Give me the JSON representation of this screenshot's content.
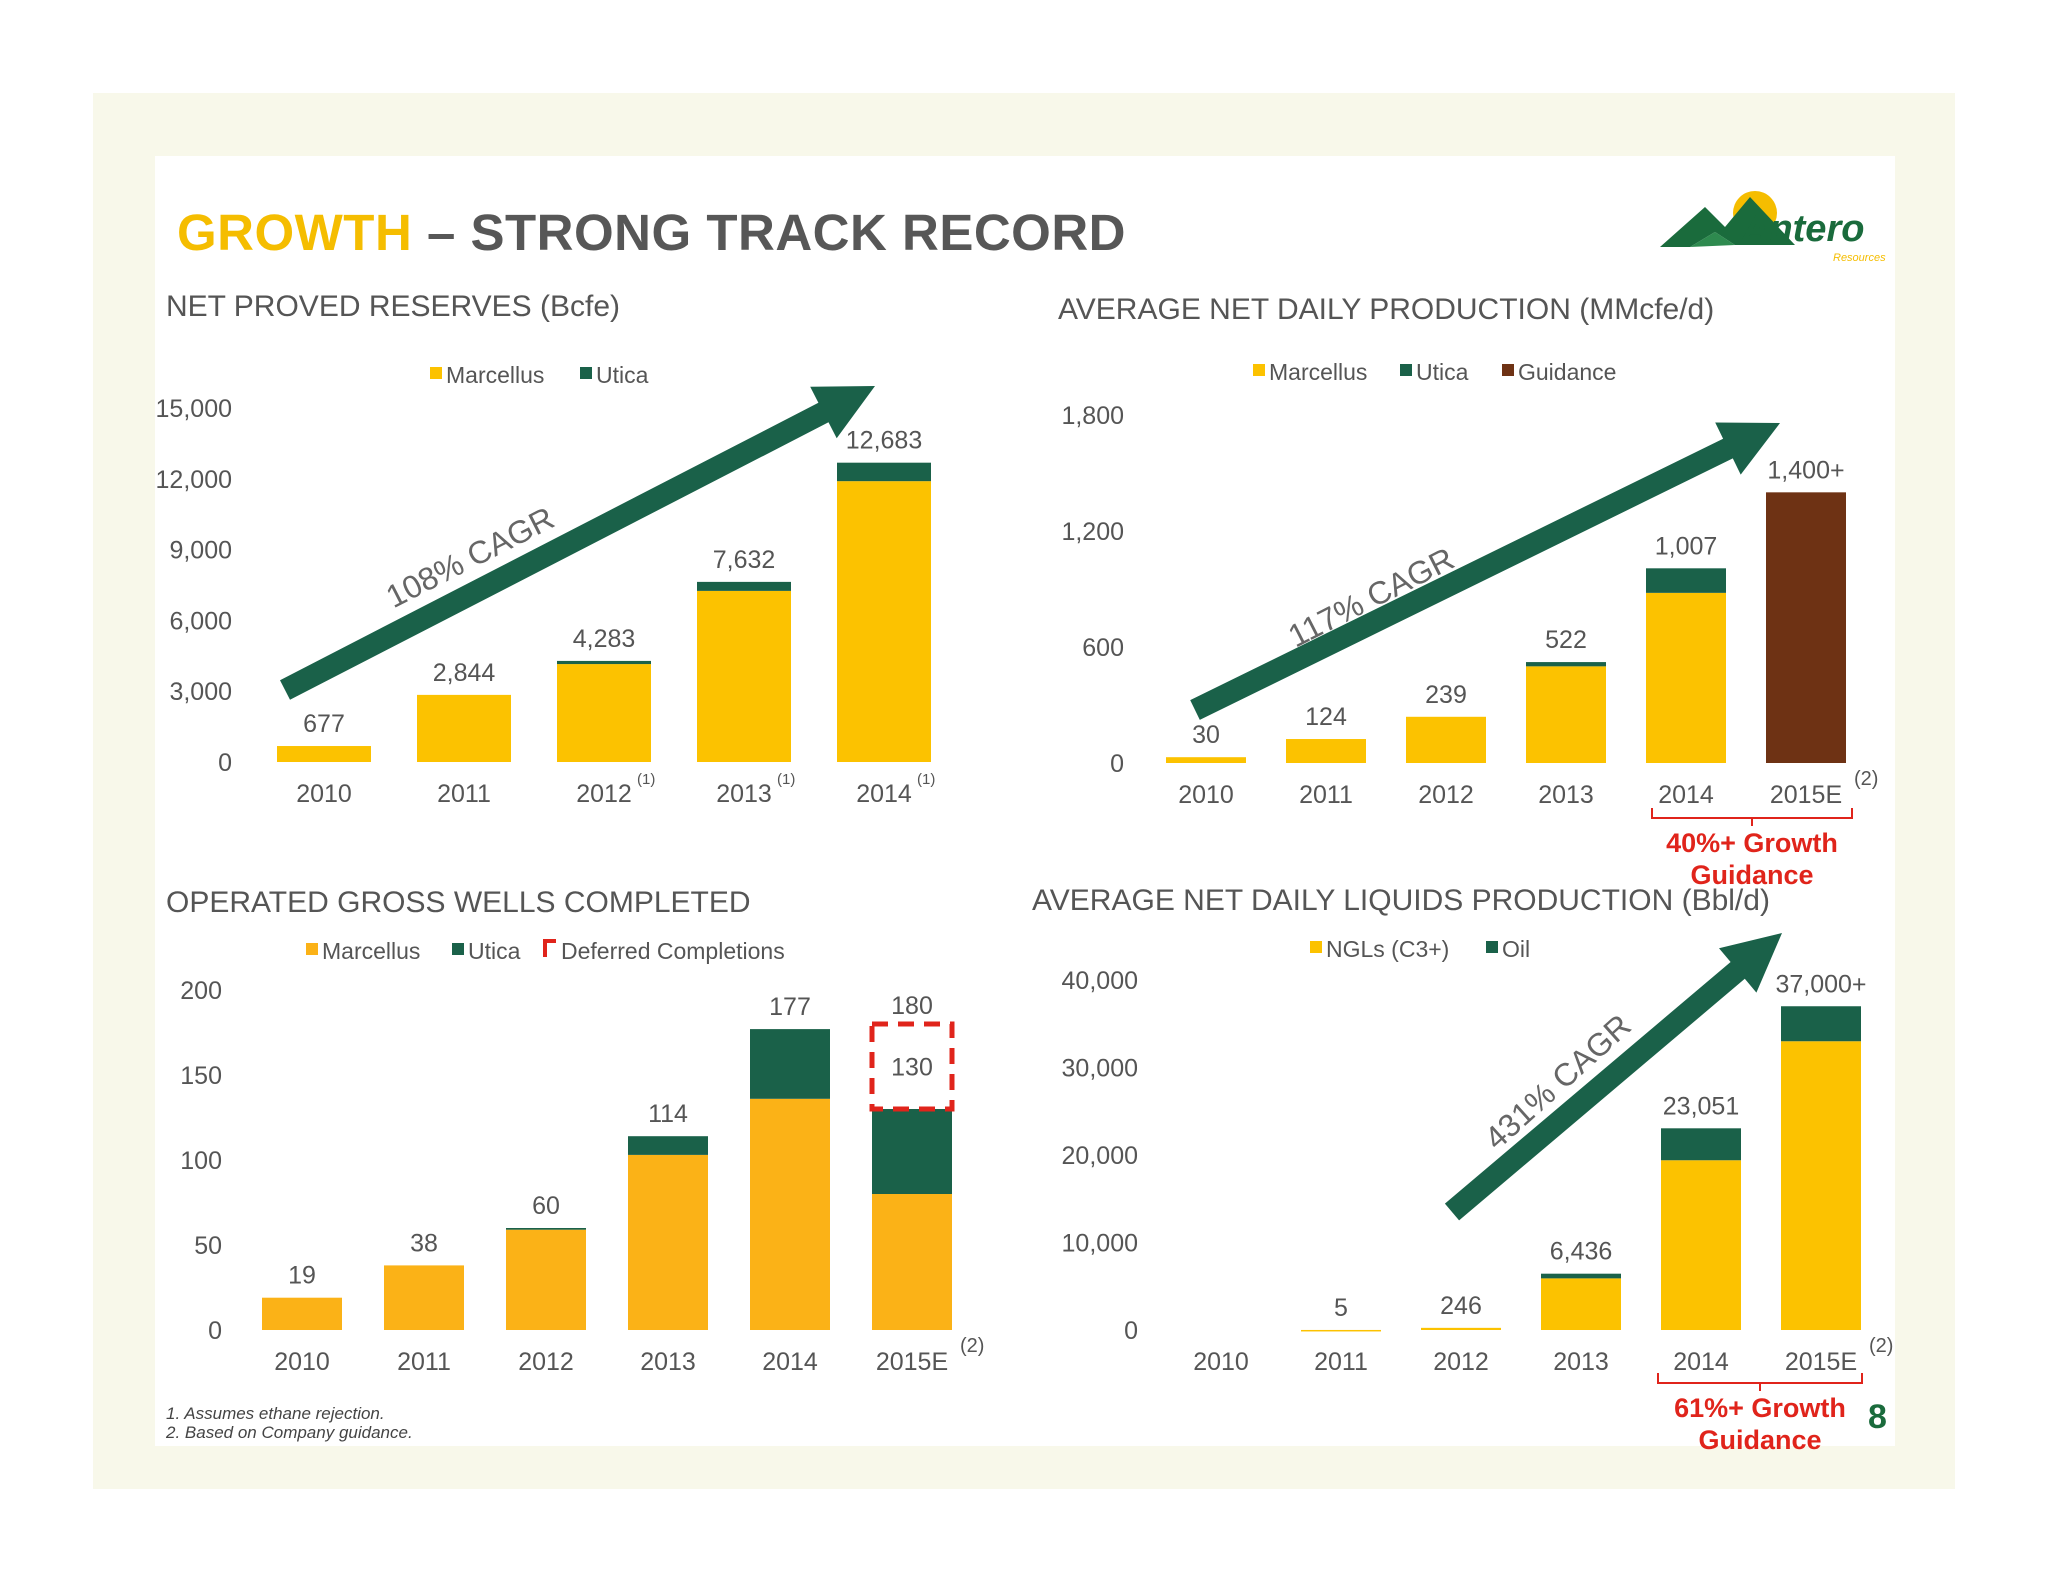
{
  "title": {
    "accent": "GROWTH",
    "rest": " – STRONG TRACK RECORD"
  },
  "logo": {
    "name": "Antero",
    "sub": "Resources"
  },
  "colors": {
    "marcellus": "#fcc200",
    "utica": "#1a6149",
    "guidance": "#6e3214",
    "ngl": "#fcc200",
    "oil": "#1a6149",
    "wells_marcellus": "#fbb217",
    "deferred": "#e0241b",
    "arrow": "#1a6149",
    "red": "#e0241b"
  },
  "chart_data": [
    {
      "id": "reserves",
      "type": "bar",
      "title": "NET PROVED RESERVES (Bcfe)",
      "categories": [
        "2010",
        "2011",
        "2012",
        "2013",
        "2014"
      ],
      "category_sups": [
        "",
        "",
        "(1)",
        "(1)",
        "(1)"
      ],
      "series": [
        {
          "name": "Marcellus",
          "values": [
            677,
            2844,
            4150,
            7250,
            11900
          ]
        },
        {
          "name": "Utica",
          "values": [
            0,
            0,
            133,
            382,
            783
          ]
        }
      ],
      "totals": [
        "677",
        "2,844",
        "4,283",
        "7,632",
        "12,683"
      ],
      "ylim": [
        0,
        15000
      ],
      "yticks": [
        "0",
        "3,000",
        "6,000",
        "9,000",
        "12,000",
        "15,000"
      ],
      "yticks_v": [
        0,
        3000,
        6000,
        9000,
        12000,
        15000
      ],
      "legend": [
        "Marcellus",
        "Utica"
      ],
      "annotation": "108% CAGR"
    },
    {
      "id": "production",
      "type": "bar",
      "title": "AVERAGE NET DAILY PRODUCTION (MMcfe/d)",
      "categories": [
        "2010",
        "2011",
        "2012",
        "2013",
        "2014",
        "2015E"
      ],
      "category_sups": [
        "",
        "",
        "",
        "",
        "",
        "(2)"
      ],
      "series": [
        {
          "name": "Marcellus",
          "values": [
            30,
            124,
            239,
            500,
            880,
            0
          ]
        },
        {
          "name": "Utica",
          "values": [
            0,
            0,
            0,
            22,
            127,
            0
          ]
        },
        {
          "name": "Guidance",
          "values": [
            0,
            0,
            0,
            0,
            0,
            1400
          ]
        }
      ],
      "totals": [
        "30",
        "124",
        "239",
        "522",
        "1,007",
        "1,400+"
      ],
      "ylim": [
        0,
        1800
      ],
      "yticks": [
        "0",
        "600",
        "1,200",
        "1,800"
      ],
      "yticks_v": [
        0,
        600,
        1200,
        1800
      ],
      "legend": [
        "Marcellus",
        "Utica",
        "Guidance"
      ],
      "annotation": "117% CAGR",
      "note": [
        "40%+ Growth",
        "Guidance"
      ]
    },
    {
      "id": "wells",
      "type": "bar",
      "title": "OPERATED GROSS WELLS COMPLETED",
      "categories": [
        "2010",
        "2011",
        "2012",
        "2013",
        "2014",
        "2015E"
      ],
      "category_sups": [
        "",
        "",
        "",
        "",
        "",
        "(2)"
      ],
      "series": [
        {
          "name": "Marcellus",
          "values": [
            19,
            38,
            59,
            103,
            136,
            80
          ]
        },
        {
          "name": "Utica",
          "values": [
            0,
            0,
            1,
            11,
            41,
            50
          ]
        }
      ],
      "deferred": {
        "index": 5,
        "from": 130,
        "to": 180,
        "label": "130"
      },
      "totals": [
        "19",
        "38",
        "60",
        "114",
        "177",
        "180"
      ],
      "ylim": [
        0,
        200
      ],
      "yticks": [
        "0",
        "50",
        "100",
        "150",
        "200"
      ],
      "yticks_v": [
        0,
        50,
        100,
        150,
        200
      ],
      "legend": [
        "Marcellus",
        "Utica",
        "Deferred Completions"
      ]
    },
    {
      "id": "liquids",
      "type": "bar",
      "title": "AVERAGE NET DAILY LIQUIDS PRODUCTION (Bbl/d)",
      "categories": [
        "2010",
        "2011",
        "2012",
        "2013",
        "2014",
        "2015E"
      ],
      "category_sups": [
        "",
        "",
        "",
        "",
        "",
        "(2)"
      ],
      "series": [
        {
          "name": "NGLs (C3+)",
          "values": [
            0,
            5,
            246,
            5900,
            19400,
            33000
          ]
        },
        {
          "name": "Oil",
          "values": [
            0,
            0,
            0,
            536,
            3651,
            4000
          ]
        }
      ],
      "totals": [
        "",
        "5",
        "246",
        "6,436",
        "23,051",
        "37,000+"
      ],
      "ylim": [
        0,
        40000
      ],
      "yticks": [
        "0",
        "10,000",
        "20,000",
        "30,000",
        "40,000"
      ],
      "yticks_v": [
        0,
        10000,
        20000,
        30000,
        40000
      ],
      "legend": [
        "NGLs (C3+)",
        "Oil"
      ],
      "annotation": "431% CAGR",
      "note": [
        "61%+ Growth",
        "Guidance"
      ]
    }
  ],
  "footnotes": [
    "1.  Assumes ethane rejection.",
    "2.  Based on Company guidance."
  ],
  "page_number": "8"
}
